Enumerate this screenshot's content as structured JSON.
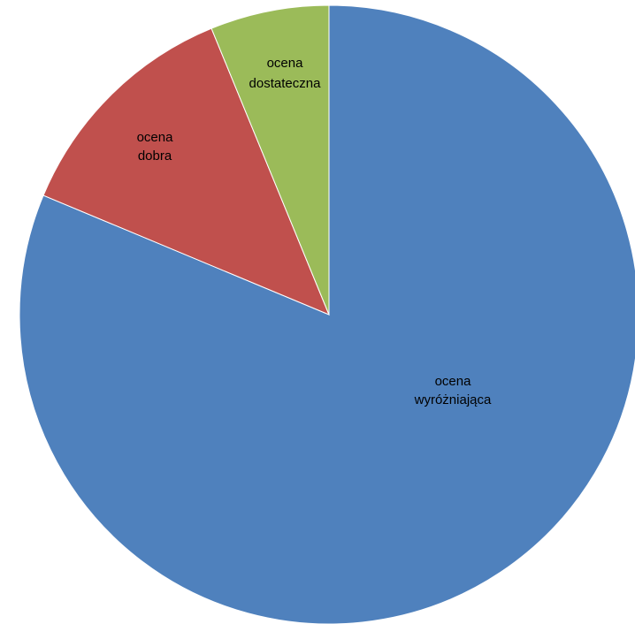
{
  "chart_data": {
    "type": "pie",
    "categories": [
      "ocena wyróżniająca",
      "ocena dobra",
      "ocena dostateczna"
    ],
    "values": [
      81.3,
      12.5,
      6.2
    ],
    "labels": [
      [
        "ocena",
        "wyróżniająca"
      ],
      [
        "ocena",
        "dobra"
      ],
      [
        "ocena",
        "dostateczna"
      ]
    ],
    "colors": [
      "#4F81BD",
      "#C0504D",
      "#9BBB59"
    ],
    "start_angle_deg": 0,
    "direction": "clockwise",
    "legend": "none"
  }
}
